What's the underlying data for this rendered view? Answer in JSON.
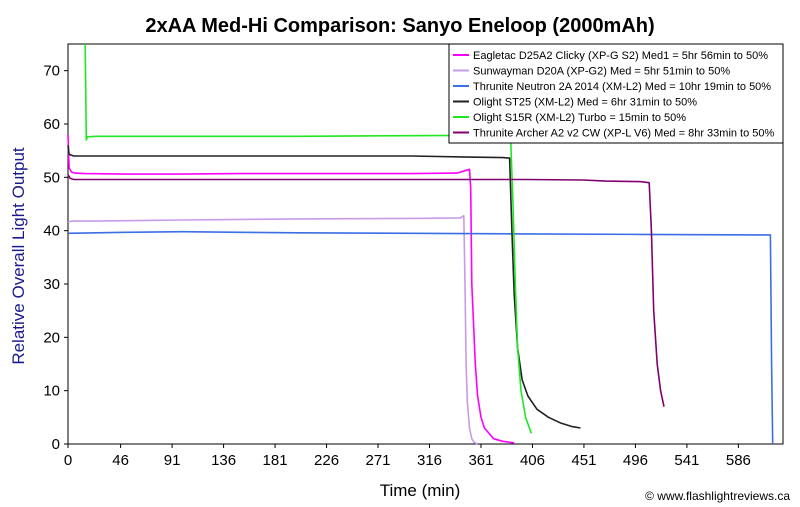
{
  "chart_data": {
    "type": "line",
    "title": "2xAA Med-Hi Comparison: Sanyo Eneloop (2000mAh)",
    "xlabel": "Time (min)",
    "ylabel": "Relative Overall Light Output",
    "xlim": [
      0,
      625
    ],
    "ylim": [
      0,
      75
    ],
    "xticks": [
      0,
      46,
      91,
      136,
      181,
      226,
      271,
      316,
      361,
      406,
      451,
      496,
      541,
      586
    ],
    "yticks": [
      0,
      10,
      20,
      30,
      40,
      50,
      60,
      70
    ],
    "grid": false,
    "legend_position": "top-right",
    "credit": "© www.flashlightreviews.ca",
    "series": [
      {
        "name": "Eagletac D25A2 Clicky (XP-G S2) Med1 = 5hr 56min to 50%",
        "color": "#ff00ff",
        "x": [
          0,
          1,
          3,
          6,
          15,
          50,
          100,
          150,
          200,
          250,
          300,
          340,
          351,
          352,
          353,
          356,
          358,
          361,
          364,
          368,
          372,
          380,
          390
        ],
        "y": [
          58,
          51.8,
          51,
          50.8,
          50.7,
          50.6,
          50.6,
          50.7,
          50.7,
          50.7,
          50.7,
          50.8,
          51.5,
          48,
          30,
          15,
          9,
          5,
          3,
          2,
          1,
          0.5,
          0.2
        ]
      },
      {
        "name": "Sunwayman D20A (XP-G2) Med = 5hr 51min to 50%",
        "color": "#c89be6",
        "x": [
          0,
          3,
          20,
          100,
          200,
          300,
          343,
          346,
          347,
          348,
          349,
          351,
          353,
          355,
          358
        ],
        "y": [
          41.6,
          41.8,
          41.8,
          42,
          42.2,
          42.3,
          42.4,
          42.8,
          30,
          15,
          8,
          3,
          1,
          0.3,
          0
        ]
      },
      {
        "name": "Thrunite Neutron 2A 2014 (XM-L2) Med = 10hr 19min to 50%",
        "color": "#3c6ee6",
        "x": [
          0,
          50,
          100,
          150,
          200,
          300,
          400,
          500,
          600,
          614,
          615,
          616
        ],
        "y": [
          39.5,
          39.7,
          39.8,
          39.7,
          39.6,
          39.5,
          39.4,
          39.3,
          39.2,
          39.2,
          15,
          0
        ]
      },
      {
        "name": "Olight ST25 (XM-L2) Med = 6hr 31min to 50%",
        "color": "#222222",
        "x": [
          0,
          1,
          5,
          50,
          100,
          150,
          200,
          250,
          300,
          350,
          380,
          386,
          388,
          390,
          393,
          397,
          402,
          410,
          420,
          430,
          440,
          448
        ],
        "y": [
          56,
          54.3,
          54,
          54,
          54,
          54,
          54,
          54,
          54,
          53.8,
          53.7,
          53.6,
          40,
          28,
          18,
          12,
          9,
          6.5,
          5,
          4,
          3.3,
          3
        ]
      },
      {
        "name": "Olight S15R (XM-L2) Turbo = 15min to 50%",
        "color": "#22e622",
        "x": [
          15,
          16,
          17,
          25,
          100,
          200,
          300,
          380,
          387,
          389,
          391,
          393,
          396,
          400,
          405
        ],
        "y": [
          75,
          57,
          57.6,
          57.7,
          57.7,
          57.7,
          57.8,
          57.9,
          57,
          45,
          30,
          18,
          10,
          5,
          2
        ]
      },
      {
        "name": "Thrunite Archer A2 v2 CW (XP-L V6) Med = 8hr 33min to 50%",
        "color": "#800070",
        "x": [
          0,
          2,
          5,
          20,
          100,
          200,
          300,
          400,
          450,
          470,
          500,
          508,
          510,
          512,
          515,
          518,
          521
        ],
        "y": [
          50.5,
          49.8,
          49.6,
          49.6,
          49.6,
          49.6,
          49.6,
          49.6,
          49.5,
          49.3,
          49.2,
          49,
          40,
          25,
          15,
          10,
          7
        ]
      }
    ]
  }
}
